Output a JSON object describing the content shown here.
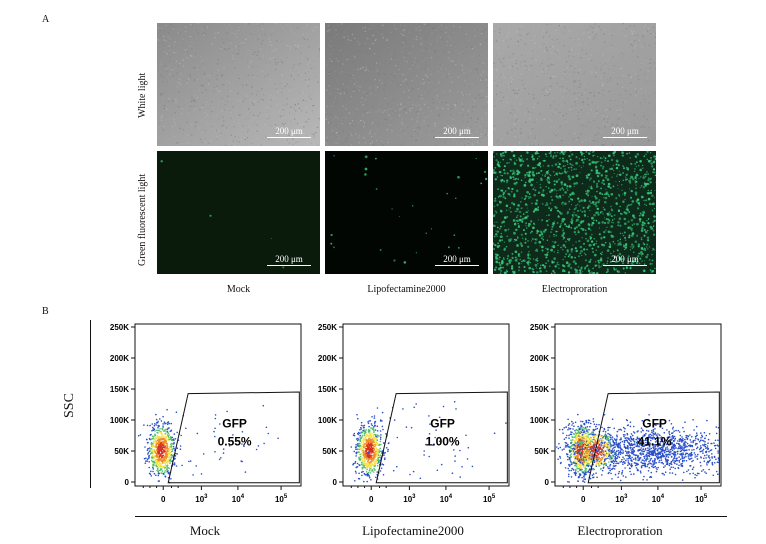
{
  "panel_a": {
    "letter": "A",
    "row_labels": [
      "White light",
      "Green fluorescent light"
    ],
    "scale_bar": "200 μm",
    "columns": [
      "Mock",
      "Lipofectamine2000",
      "Electroproration"
    ]
  },
  "panel_b": {
    "letter": "B",
    "ylabel": "SSC",
    "columns": [
      "Mock",
      "Lipofectamine2000",
      "Electroproration"
    ],
    "gate_label": "GFP"
  },
  "chart_data": [
    {
      "type": "scatter",
      "title": "Mock",
      "ylabel": "SSC",
      "yticks": [
        "0",
        "50K",
        "100K",
        "150K",
        "200K",
        "250K"
      ],
      "xticks": [
        "0",
        "10^3",
        "10^4",
        "10^5"
      ],
      "gate": "GFP",
      "gfp_percent": "0.55%",
      "gfp_value": 0.55
    },
    {
      "type": "scatter",
      "title": "Lipofectamine2000",
      "ylabel": "SSC",
      "yticks": [
        "0",
        "50K",
        "100K",
        "150K",
        "200K",
        "250K"
      ],
      "xticks": [
        "0",
        "10^3",
        "10^4",
        "10^5"
      ],
      "gate": "GFP",
      "gfp_percent": "1.00%",
      "gfp_value": 1.0
    },
    {
      "type": "scatter",
      "title": "Electroproration",
      "ylabel": "SSC",
      "yticks": [
        "0",
        "50K",
        "100K",
        "150K",
        "200K",
        "250K"
      ],
      "xticks": [
        "0",
        "10^3",
        "10^4",
        "10^5"
      ],
      "gate": "GFP",
      "gfp_percent": "41.1%",
      "gfp_value": 41.1
    }
  ],
  "colors": {
    "fluor_green": "#38c77a",
    "fluor_bg": "#06140a",
    "dense_red": "#d7301f",
    "dense_yellow": "#f4e34a",
    "sparse_blue": "#2a4fc9"
  }
}
